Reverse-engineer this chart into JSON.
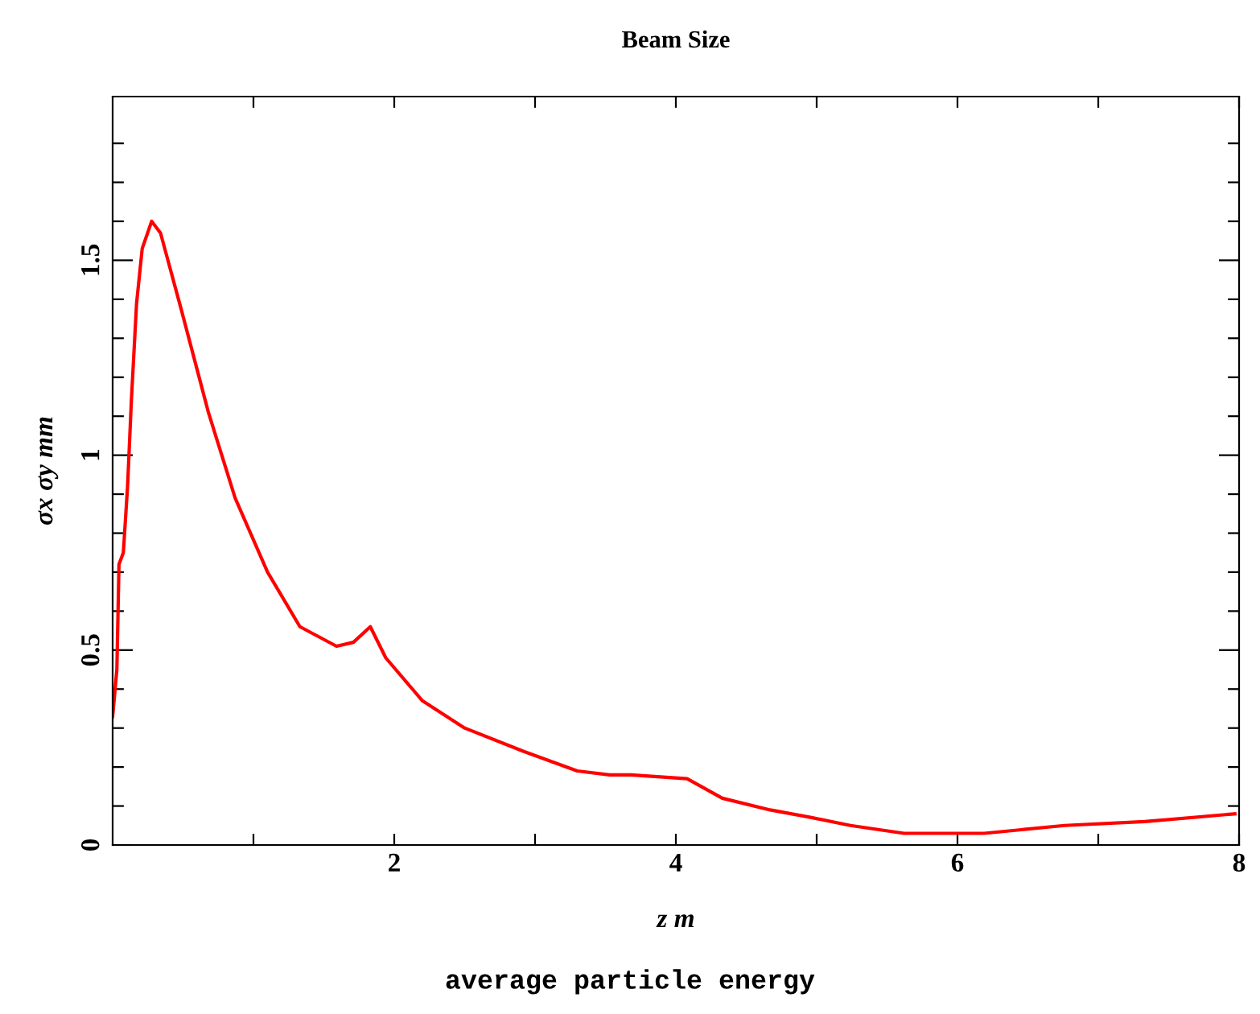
{
  "chart_data": {
    "type": "line",
    "title": "Beam Size",
    "xlabel": "z m",
    "ylabel": "σx σy mm",
    "annotations": [
      "average particle energy"
    ],
    "x": [
      0,
      0.03,
      0.045,
      0.076,
      0.106,
      0.133,
      0.17,
      0.21,
      0.277,
      0.34,
      0.49,
      0.68,
      0.87,
      1.1,
      1.33,
      1.59,
      1.71,
      1.83,
      1.94,
      2.2,
      2.5,
      2.92,
      3.3,
      3.53,
      3.68,
      4.08,
      4.33,
      4.67,
      4.97,
      5.24,
      5.62,
      6.19,
      6.76,
      7.33,
      7.97
    ],
    "series": [
      {
        "color": "#ff0000",
        "values": [
          0.33,
          0.45,
          0.72,
          0.75,
          0.92,
          1.14,
          1.39,
          1.53,
          1.6,
          1.57,
          1.37,
          1.11,
          0.89,
          0.7,
          0.56,
          0.51,
          0.52,
          0.56,
          0.48,
          0.37,
          0.3,
          0.24,
          0.19,
          0.18,
          0.18,
          0.17,
          0.12,
          0.09,
          0.07,
          0.05,
          0.03,
          0.03,
          0.05,
          0.06,
          0.08
        ]
      }
    ],
    "xlim": [
      0,
      8
    ],
    "ylim": [
      0,
      1.92
    ],
    "xticks": [
      {
        "value": 1,
        "label": null
      },
      2,
      {
        "value": 3,
        "label": null
      },
      4,
      {
        "value": 5,
        "label": null
      },
      6,
      {
        "value": 7,
        "label": null
      },
      8
    ],
    "yticks": [
      0,
      {
        "value": 0.1,
        "label": null
      },
      {
        "value": 0.2,
        "label": null
      },
      {
        "value": 0.3,
        "label": null
      },
      {
        "value": 0.4,
        "label": null
      },
      0.5,
      {
        "value": 0.6,
        "label": null
      },
      {
        "value": 0.7,
        "label": null
      },
      {
        "value": 0.8,
        "label": null
      },
      {
        "value": 0.9,
        "label": null
      },
      1,
      {
        "value": 1.1,
        "label": null
      },
      {
        "value": 1.2,
        "label": null
      },
      {
        "value": 1.3,
        "label": null
      },
      {
        "value": 1.4,
        "label": null
      },
      1.5,
      {
        "value": 1.6,
        "label": null
      },
      {
        "value": 1.7,
        "label": null
      },
      {
        "value": 1.8,
        "label": null
      }
    ],
    "grid": false,
    "legend": false,
    "marker": "none",
    "line_style": "solid"
  }
}
